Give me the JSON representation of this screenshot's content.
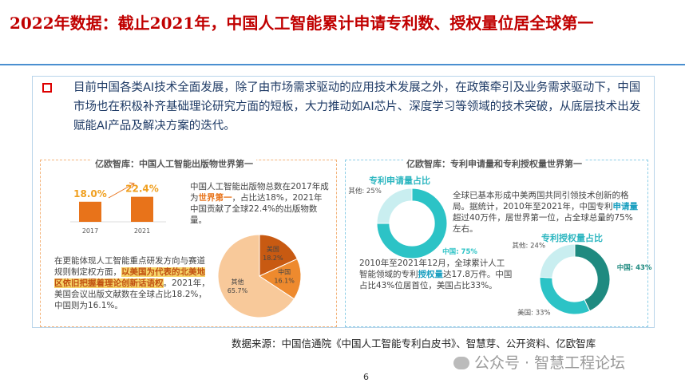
{
  "title": "2022年数据：截止2021年，中国人工智能累计申请专利数、授权量位居全球第一",
  "intro": "目前中国各类AI技术全面发展，除了由市场需求驱动的应用技术发展之外，在政策牵引及业务需求驱动下，中国市场也在积极补齐基础理论研究方面的短板，大力推动如AI芯片、深度学习等领域的技术突破，从底层技术出发赋能AI产品及解决方案的迭代。",
  "left_panel": {
    "heading": "亿欧智库：中国人工智能出版物世界第一",
    "bar_chart": {
      "type": "bar",
      "categories": [
        "2017",
        "2021"
      ],
      "values": [
        18.0,
        22.4
      ],
      "value_labels": [
        "18.0%",
        "22.4%"
      ],
      "color": "#e8731a",
      "label_color": "#f0a020"
    },
    "text1": [
      "中国人工智能出版物总数在2017年成为",
      "世界第一",
      "，占比达18%，2021年中国贡献了全球22.4%的出版物数量。"
    ],
    "pie_chart": {
      "type": "pie",
      "categories": [
        "美国",
        "中国",
        "其他"
      ],
      "values": [
        18.2,
        16.1,
        65.7
      ],
      "value_labels": [
        "18.2%",
        "16.1%",
        "65.7%"
      ],
      "colors": [
        "#c85a12",
        "#ee8a2e",
        "#f8c99a"
      ]
    },
    "text2": [
      "在更能体现人工智能重点研发方向与赛道规则制定权方面，",
      "以美国为代表的北美地区依旧把握着理论创新话语权",
      "。2021年，美国会议出版文献数在全球占比18.2%，中国则为16.1%。"
    ]
  },
  "right_panel": {
    "heading": "亿欧智库：专利申请量和专利授权量世界第一",
    "donut1_title": "专利申请量占比",
    "donut1": {
      "type": "donut",
      "categories": [
        "中国",
        "其他"
      ],
      "values": [
        75,
        25
      ],
      "value_labels": [
        "75%",
        "25%"
      ],
      "colors": [
        "#2cc3c6",
        "#c9eef0"
      ]
    },
    "text1": [
      "全球已基本形成中美两国共同引领技术创新的格局。据统计，2010年至2021年，中国专利",
      "申请量",
      "超过40万件，居世界第一位，占全球总量的75%左右。"
    ],
    "donut2_title": "专利授权量占比",
    "donut2": {
      "type": "donut",
      "categories": [
        "中国",
        "美国",
        "其他"
      ],
      "values": [
        43,
        33,
        24
      ],
      "value_labels": [
        "43%",
        "33%",
        "24%"
      ],
      "colors": [
        "#1f8a80",
        "#2cc3c6",
        "#c9eef0"
      ]
    },
    "text2": [
      "2010年至2021年12月，全球累计人工智能领域的专利",
      "授权量",
      "达17.8万件。中国占比43%位居首位，美国占比33%。"
    ]
  },
  "source": "数据来源：中国信通院《中国人工智能专利白皮书》、智慧芽、公开资料、亿欧智库",
  "page_number": 6,
  "watermark": "公众号 · 智慧工程论坛"
}
